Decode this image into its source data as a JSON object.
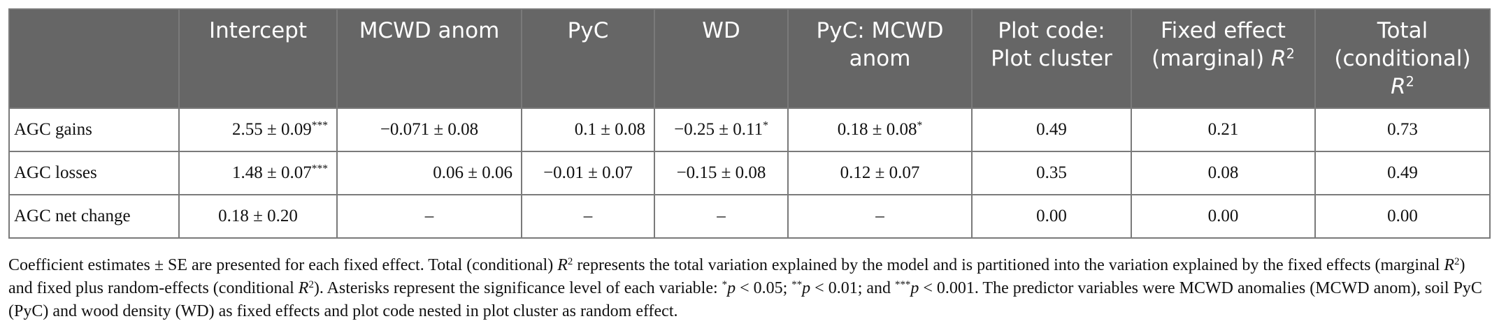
{
  "table": {
    "headers": {
      "intercept": "Intercept",
      "mcwd_anom": "MCWD anom",
      "pyc": "PyC",
      "wd": "WD",
      "pyc_mcwd_line1": "PyC: MCWD",
      "pyc_mcwd_line2": "anom",
      "plot_code_line1": "Plot code:",
      "plot_code_line2": "Plot cluster",
      "fixed_line1": "Fixed effect",
      "fixed_line2": "(marginal) ",
      "fixed_r": "R",
      "total_line1": "Total",
      "total_line2": "(conditional)",
      "total_r": "R",
      "squared": "2"
    },
    "rows": [
      {
        "label": "AGC gains",
        "intercept": "2.55 ± 0.09",
        "intercept_sig": "***",
        "mcwd": "−0.071 ± 0.08",
        "mcwd_sig": "",
        "pyc": "0.1 ± 0.08",
        "pyc_sig": "",
        "wd": "−0.25 ± 0.11",
        "wd_sig": "*",
        "pyc_mcwd": "0.18 ± 0.08",
        "pyc_mcwd_sig": "*",
        "plot": "0.49",
        "fixed": "0.21",
        "total": "0.73"
      },
      {
        "label": "AGC losses",
        "intercept": "1.48 ± 0.07",
        "intercept_sig": "***",
        "mcwd": "0.06 ± 0.06",
        "mcwd_sig": "",
        "pyc": "−0.01 ± 0.07",
        "pyc_sig": "",
        "wd": "−0.15 ± 0.08",
        "wd_sig": "",
        "pyc_mcwd": "0.12 ± 0.07",
        "pyc_mcwd_sig": "",
        "plot": "0.35",
        "fixed": "0.08",
        "total": "0.49"
      },
      {
        "label": "AGC net change",
        "intercept": "0.18 ± 0.20",
        "intercept_sig": "",
        "mcwd": "–",
        "mcwd_sig": "",
        "pyc": "–",
        "pyc_sig": "",
        "wd": "–",
        "wd_sig": "",
        "pyc_mcwd": "–",
        "pyc_mcwd_sig": "",
        "plot": "0.00",
        "fixed": "0.00",
        "total": "0.00"
      }
    ]
  },
  "caption": {
    "s1": "Coefficient estimates ± SE are presented for each fixed effect. Total (conditional) ",
    "r": "R",
    "sq": "2",
    "s2": " represents the total variation explained by the model and is partitioned into the variation explained by the fixed effects (marginal ",
    "s3": ") and fixed plus random-effects (conditional ",
    "s4": "). Asterisks represent the significance level of each variable: ",
    "star1": "*",
    "p": "p",
    "t1": " < 0.05; ",
    "star2": "**",
    "t2": " < 0.01; and ",
    "star3": "***",
    "t3": " < 0.001. The predictor variables were MCWD anomalies (MCWD anom), soil PyC (PyC) and wood density (WD) as fixed effects and plot code nested in plot cluster as random effect."
  }
}
